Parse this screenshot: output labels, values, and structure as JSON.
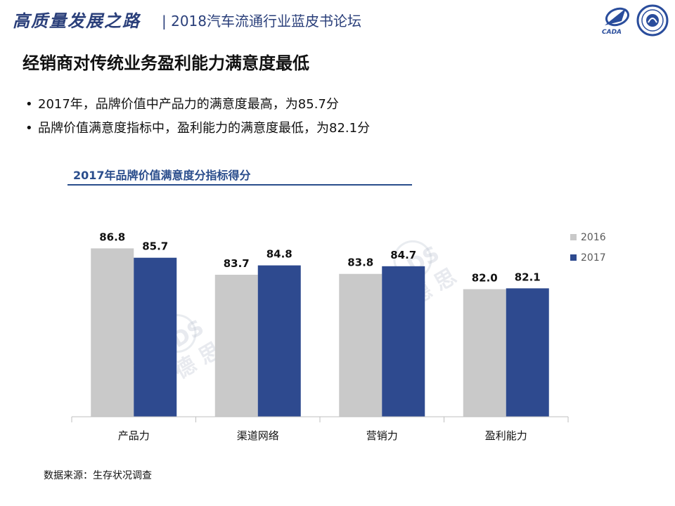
{
  "header": {
    "slogan": "高质量发展之路",
    "forum": "| 2018汽车流通行业蓝皮书论坛",
    "logo_left_text": "CADA"
  },
  "slide_title": "经销商对传统业务盈利能力满意度最低",
  "bullets": [
    "2017年，品牌价值中产品力的满意度最高，为85.7分",
    "品牌价值满意度指标中，盈利能力的满意度最低，为82.1分"
  ],
  "source": "数据来源：生存状况调查",
  "watermark": {
    "brand": "AutoDS",
    "cn": "奥 德 思"
  },
  "chart_data": {
    "type": "bar",
    "title": "2017年品牌价值满意度分指标得分",
    "categories": [
      "产品力",
      "渠道网络",
      "营销力",
      "盈利能力"
    ],
    "series": [
      {
        "name": "2016",
        "values": [
          86.8,
          83.7,
          83.8,
          82.0
        ],
        "color": "#c9c9c9"
      },
      {
        "name": "2017",
        "values": [
          85.7,
          84.8,
          84.7,
          82.1
        ],
        "color": "#2e4a8f"
      }
    ],
    "ylim": [
      67,
      87.5
    ],
    "grid": false,
    "legend": "right"
  }
}
